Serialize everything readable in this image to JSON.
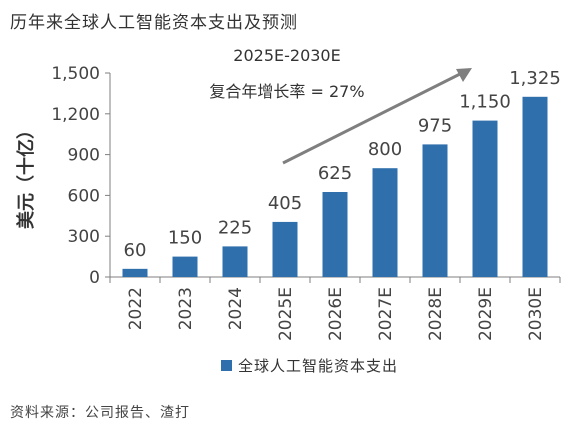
{
  "title": "历年来全球人工智能资本支出及预测",
  "source": "资料来源：公司报告、渣打",
  "chart_data": {
    "type": "bar",
    "categories": [
      "2022",
      "2023",
      "2024",
      "2025E",
      "2026E",
      "2027E",
      "2028E",
      "2029E",
      "2030E"
    ],
    "series": [
      {
        "name": "全球人工智能资本支出",
        "values": [
          60,
          150,
          225,
          405,
          625,
          800,
          975,
          1150,
          1325
        ]
      }
    ],
    "value_labels": [
      "60",
      "150",
      "225",
      "405",
      "625",
      "800",
      "975",
      "1,150",
      "1,325"
    ],
    "ylabel": "美元（十亿）",
    "ylim": [
      0,
      1500
    ],
    "yticks": [
      0,
      300,
      600,
      900,
      1200,
      1500
    ],
    "ytick_labels": [
      "0",
      "300",
      "600",
      "900",
      "1,200",
      "1,500"
    ],
    "annotation": {
      "period": "2025E-2030E",
      "text": "复合年增长率 = 27%"
    },
    "legend_position": "bottom",
    "grid": false,
    "colors": {
      "bar": "#2E6FAC",
      "axis": "#7F7F7F",
      "arrow": "#7F7F7F"
    }
  }
}
